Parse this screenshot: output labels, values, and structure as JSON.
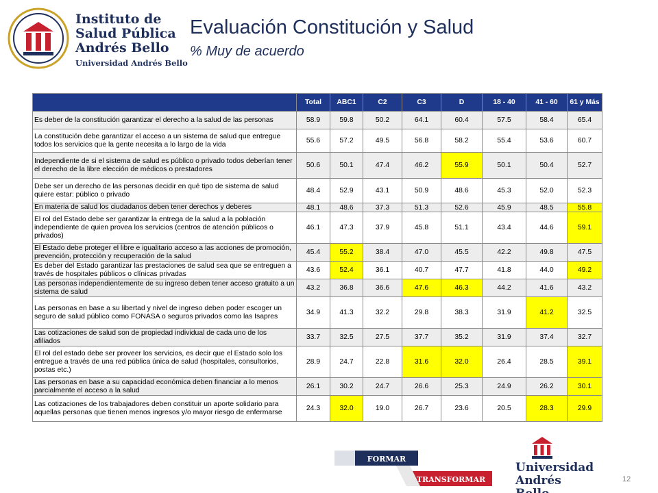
{
  "header": {
    "logo_lines": [
      "Instituto de",
      "Salud Pública",
      "Andrés Bello"
    ],
    "logo_university": "Universidad Andrés Bello",
    "title": "Evaluación Constitución y Salud",
    "subtitle": "% Muy de acuerdo"
  },
  "table": {
    "columns": [
      "Total",
      "ABC1",
      "C2",
      "C3",
      "D",
      "18 - 40",
      "41 - 60",
      "61 y Más"
    ],
    "rows": [
      {
        "label": "Es deber de la constitución garantizar el derecho a la salud de las personas",
        "values": [
          "58.9",
          "59.8",
          "50.2",
          "64.1",
          "60.4",
          "57.5",
          "58.4",
          "65.4"
        ],
        "highlight": []
      },
      {
        "label": "La constitución debe garantizar  el acceso a un sistema de salud que entregue todos los servicios que la gente necesita a lo largo de la vida",
        "values": [
          "55.6",
          "57.2",
          "49.5",
          "56.8",
          "58.2",
          "55.4",
          "53.6",
          "60.7"
        ],
        "highlight": []
      },
      {
        "label": "Independiente de si el sistema de salud es público o privado todos deberían tener el derecho de la  libre elección de médicos o prestadores",
        "values": [
          "50.6",
          "50.1",
          "47.4",
          "46.2",
          "55.9",
          "50.1",
          "50.4",
          "52.7"
        ],
        "highlight": [
          4
        ]
      },
      {
        "label": "Debe ser un derecho de las personas decidir en qué tipo de sistema de salud quiere estar: público o privado",
        "values": [
          "48.4",
          "52.9",
          "43.1",
          "50.9",
          "48.6",
          "45.3",
          "52.0",
          "52.3"
        ],
        "highlight": []
      },
      {
        "label": "En materia de salud los ciudadanos deben tener derechos y deberes",
        "values": [
          "48.1",
          "48.6",
          "37.3",
          "51.3",
          "52.6",
          "45.9",
          "48.5",
          "55.8"
        ],
        "highlight": [
          7
        ]
      },
      {
        "label": "El rol del Estado debe ser garantizar la entrega de la salud a la población independiente de quien provea los servicios (centros de atención públicos o privados)",
        "values": [
          "46.1",
          "47.3",
          "37.9",
          "45.8",
          "51.1",
          "43.4",
          "44.6",
          "59.1"
        ],
        "highlight": [
          7
        ]
      },
      {
        "label": "El Estado debe proteger el libre e igualitario acceso a las acciones de promoción, prevención, protección y recuperación de la salud",
        "values": [
          "45.4",
          "55.2",
          "38.4",
          "47.0",
          "45.5",
          "42.2",
          "49.8",
          "47.5"
        ],
        "highlight": [
          1
        ]
      },
      {
        "label": "Es deber del Estado garantizar las prestaciones de salud sea que se entreguen a través de hospitales  públicos o clínicas privadas",
        "values": [
          "43.6",
          "52.4",
          "36.1",
          "40.7",
          "47.7",
          "41.8",
          "44.0",
          "49.2"
        ],
        "highlight": [
          1,
          7
        ]
      },
      {
        "label": "Las personas independientemente de su ingreso deben tener acceso gratuito a un sistema de salud",
        "values": [
          "43.2",
          "36.8",
          "36.6",
          "47.6",
          "46.3",
          "44.2",
          "41.6",
          "43.2"
        ],
        "highlight": [
          3,
          4
        ]
      },
      {
        "label": "Las personas en base a su libertad y nivel de ingreso deben poder escoger un seguro de salud público como FONASA o seguros privados como las Isapres",
        "values": [
          "34.9",
          "41.3",
          "32.2",
          "29.8",
          "38.3",
          "31.9",
          "41.2",
          "32.5"
        ],
        "highlight": [
          6
        ]
      },
      {
        "label": "Las cotizaciones de salud son de propiedad individual de cada uno de los afiliados",
        "values": [
          "33.7",
          "32.5",
          "27.5",
          "37.7",
          "35.2",
          "31.9",
          "37.4",
          "32.7"
        ],
        "highlight": []
      },
      {
        "label": "El rol del estado debe ser proveer los servicios, es decir que el Estado solo los entregue a través de una red pública única de salud (hospitales, consultorios, postas etc.)",
        "values": [
          "28.9",
          "24.7",
          "22.8",
          "31.6",
          "32.0",
          "26.4",
          "28.5",
          "39.1"
        ],
        "highlight": [
          3,
          4,
          7
        ]
      },
      {
        "label": "Las personas en base a su capacidad económica deben financiar a lo menos parcialmente el acceso a la salud",
        "values": [
          "26.1",
          "30.2",
          "24.7",
          "26.6",
          "25.3",
          "24.9",
          "26.2",
          "30.1"
        ],
        "highlight": [
          7
        ]
      },
      {
        "label": "Las cotizaciones de los trabajadores deben constituir un aporte solidario para aquellas personas que tienen menos ingresos y/o mayor riesgo de enfermarse",
        "values": [
          "24.3",
          "32.0",
          "19.0",
          "26.7",
          "23.6",
          "20.5",
          "28.3",
          "29.9"
        ],
        "highlight": [
          1,
          6,
          7
        ]
      }
    ]
  },
  "footer": {
    "banner_top": "FORMAR",
    "banner_bottom": "TRANSFORMAR",
    "university_lines": [
      "Universidad",
      "Andrés Bello"
    ],
    "page_number": "12"
  },
  "colors": {
    "header_bg": "#1f3a8a",
    "highlight": "#ffff00",
    "brand_navy": "#1f2f5c",
    "brand_red": "#c8202f"
  }
}
